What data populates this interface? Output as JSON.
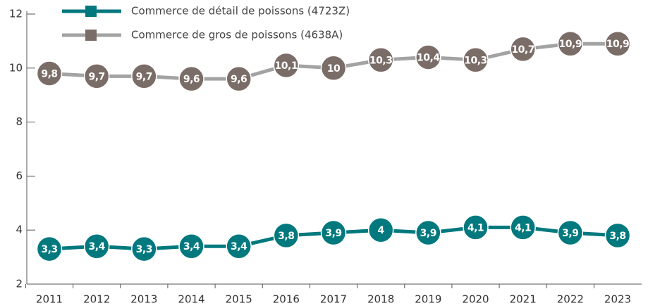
{
  "chart_data": {
    "type": "line",
    "categories": [
      "2011",
      "2012",
      "2013",
      "2014",
      "2015",
      "2016",
      "2017",
      "2018",
      "2019",
      "2020",
      "2021",
      "2022",
      "2023"
    ],
    "series": [
      {
        "name": "Commerce de détail de poissons (4723Z)",
        "color": "#00797e",
        "marker_color": "#00797e",
        "values": [
          3.3,
          3.4,
          3.3,
          3.4,
          3.4,
          3.8,
          3.9,
          4,
          3.9,
          4.1,
          4.1,
          3.9,
          3.8
        ],
        "value_labels": [
          "3,3",
          "3,4",
          "3,3",
          "3,4",
          "3,4",
          "3,8",
          "3,9",
          "4",
          "3,9",
          "4,1",
          "4,1",
          "3,9",
          "3,8"
        ]
      },
      {
        "name": "Commerce de gros de poissons (4638A)",
        "color": "#a3a3a3",
        "marker_color": "#7a6c67",
        "values": [
          9.8,
          9.7,
          9.7,
          9.6,
          9.6,
          10.1,
          10,
          10.3,
          10.4,
          10.3,
          10.7,
          10.9,
          10.9
        ],
        "value_labels": [
          "9,8",
          "9,7",
          "9,7",
          "9,6",
          "9,6",
          "10,1",
          "10",
          "10,3",
          "10,4",
          "10,3",
          "10,7",
          "10,9",
          "10,9"
        ]
      }
    ],
    "ylim": [
      2,
      12
    ],
    "yticks": [
      2,
      4,
      6,
      8,
      10,
      12
    ],
    "grid": false,
    "legend": "top"
  }
}
